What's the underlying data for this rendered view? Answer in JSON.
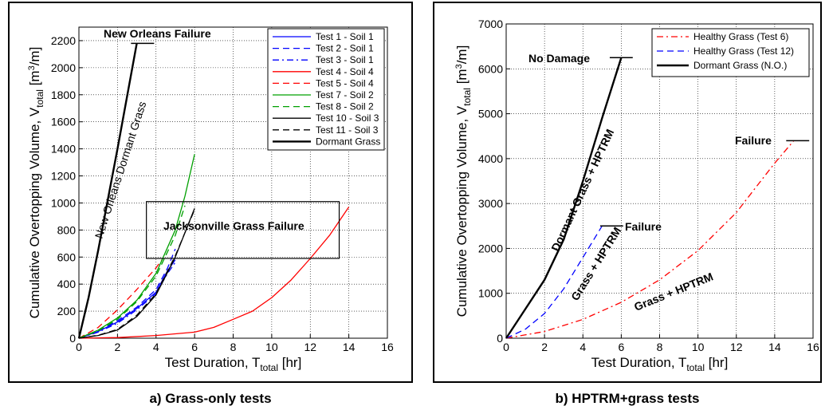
{
  "captions": {
    "left": "a) Grass-only tests",
    "right": "b) HPTRM+grass tests"
  },
  "chart_data": [
    {
      "type": "line",
      "xlabel_main": "Test Duration, T",
      "xlabel_sub": "total",
      "xlabel_unit": " [hr]",
      "ylabel_main": "Cumulative Overtopping Volume, V",
      "ylabel_sub": "total",
      "ylabel_unit": " [m",
      "ylabel_sup": "3",
      "ylabel_end": "/m]",
      "xlim": [
        0,
        16
      ],
      "ylim": [
        0,
        2300
      ],
      "xticks": [
        0,
        2,
        4,
        6,
        8,
        10,
        12,
        14,
        16
      ],
      "yticks": [
        0,
        200,
        400,
        600,
        800,
        1000,
        1200,
        1400,
        1600,
        1800,
        2000,
        2200
      ],
      "grid": true,
      "legend_position": "top-right",
      "series": [
        {
          "name": "Test 1 - Soil 1",
          "color": "#0000ff",
          "dash": "solid",
          "width": 1.3,
          "x": [
            0,
            1,
            2,
            3,
            4,
            4.6,
            5
          ],
          "y": [
            0,
            50,
            120,
            220,
            340,
            500,
            580
          ]
        },
        {
          "name": "Test 2 - Soil 1",
          "color": "#0000ff",
          "dash": "dashed",
          "width": 1.3,
          "x": [
            0,
            1,
            2,
            3,
            4,
            4.6,
            5
          ],
          "y": [
            0,
            55,
            130,
            230,
            360,
            520,
            660
          ]
        },
        {
          "name": "Test 3 - Soil 1",
          "color": "#0000ff",
          "dash": "dashdot",
          "width": 1.3,
          "x": [
            0,
            1,
            2,
            3,
            4,
            4.6,
            5
          ],
          "y": [
            0,
            45,
            110,
            210,
            330,
            480,
            560
          ]
        },
        {
          "name": "Test 4 - Soil 4",
          "color": "#ff0000",
          "dash": "solid",
          "width": 1.3,
          "x": [
            0,
            2,
            4,
            6,
            7,
            8,
            9,
            10,
            11,
            12,
            13,
            14
          ],
          "y": [
            0,
            5,
            20,
            45,
            80,
            140,
            200,
            300,
            430,
            590,
            760,
            970
          ]
        },
        {
          "name": "Test 5 - Soil 4",
          "color": "#ff0000",
          "dash": "dashed",
          "width": 1.3,
          "x": [
            0,
            1,
            2,
            3,
            4,
            4.3
          ],
          "y": [
            0,
            80,
            210,
            360,
            520,
            580
          ]
        },
        {
          "name": "Test 7 - Soil 2",
          "color": "#00a000",
          "dash": "solid",
          "width": 1.3,
          "x": [
            0,
            1,
            2,
            3,
            4,
            5,
            5.5,
            6
          ],
          "y": [
            0,
            60,
            150,
            280,
            480,
            800,
            1050,
            1360
          ]
        },
        {
          "name": "Test 8 - Soil 2",
          "color": "#00a000",
          "dash": "dashed",
          "width": 1.3,
          "x": [
            0,
            1,
            2,
            3,
            4,
            5,
            5.5
          ],
          "y": [
            0,
            55,
            140,
            270,
            460,
            760,
            980
          ]
        },
        {
          "name": "Test 10 - Soil 3",
          "color": "#000000",
          "dash": "solid",
          "width": 1.3,
          "x": [
            0,
            1,
            2,
            3,
            4,
            5,
            6
          ],
          "y": [
            0,
            20,
            60,
            160,
            320,
            600,
            960
          ]
        },
        {
          "name": "Test 11 - Soil 3",
          "color": "#000000",
          "dash": "dashed",
          "width": 1.3,
          "x": [
            0,
            1,
            2,
            3,
            4,
            5,
            6
          ],
          "y": [
            0,
            22,
            65,
            170,
            330,
            610,
            950
          ]
        },
        {
          "name": "Dormant Grass",
          "color": "#000000",
          "dash": "solid",
          "width": 2.4,
          "x": [
            0,
            0.5,
            1,
            2,
            3
          ],
          "y": [
            0,
            300,
            650,
            1400,
            2180
          ]
        }
      ],
      "annotations": [
        {
          "text": "New Orleans Failure",
          "bold": true
        },
        {
          "text": "New Orleans Dormant Grass",
          "bold": false
        },
        {
          "text": "Jacksonville Grass Failure",
          "bold": true
        }
      ]
    },
    {
      "type": "line",
      "xlabel_main": "Test Duration, T",
      "xlabel_sub": "total",
      "xlabel_unit": " [hr]",
      "ylabel_main": "Cumulative Overtopping Volume, V",
      "ylabel_sub": "total",
      "ylabel_unit": " [m",
      "ylabel_sup": "3",
      "ylabel_end": "/m]",
      "xlim": [
        0,
        16
      ],
      "ylim": [
        0,
        7000
      ],
      "xticks": [
        0,
        2,
        4,
        6,
        8,
        10,
        12,
        14,
        16
      ],
      "yticks": [
        0,
        1000,
        2000,
        3000,
        4000,
        5000,
        6000,
        7000
      ],
      "grid": true,
      "legend_position": "top-right",
      "series": [
        {
          "name": "Healthy Grass (Test 6)",
          "color": "#ff0000",
          "dash": "dashdot",
          "width": 1.3,
          "x": [
            0,
            2,
            4,
            6,
            8,
            10,
            12,
            13,
            14,
            15
          ],
          "y": [
            0,
            150,
            420,
            800,
            1300,
            1950,
            2800,
            3350,
            3900,
            4400
          ]
        },
        {
          "name": "Healthy Grass (Test 12)",
          "color": "#0000ff",
          "dash": "dashed",
          "width": 1.3,
          "x": [
            0,
            1,
            2,
            3,
            4,
            5
          ],
          "y": [
            0,
            200,
            550,
            1100,
            1800,
            2500
          ]
        },
        {
          "name": "Dormant Grass (N.O.)",
          "color": "#000000",
          "dash": "solid",
          "width": 2.4,
          "x": [
            0,
            1,
            2,
            3,
            4,
            5,
            6
          ],
          "y": [
            0,
            650,
            1300,
            2200,
            3500,
            4900,
            6250
          ]
        }
      ],
      "annotations": [
        {
          "text": "No Damage",
          "bold": true
        },
        {
          "text": "Failure",
          "bold": true
        },
        {
          "text": "Failure",
          "bold": true
        },
        {
          "text": "Dormant Grass + HPTRM",
          "bold": true
        },
        {
          "text": "Grass + HPTRM",
          "bold": true
        },
        {
          "text": "Grass + HPTRM",
          "bold": true
        }
      ]
    }
  ]
}
